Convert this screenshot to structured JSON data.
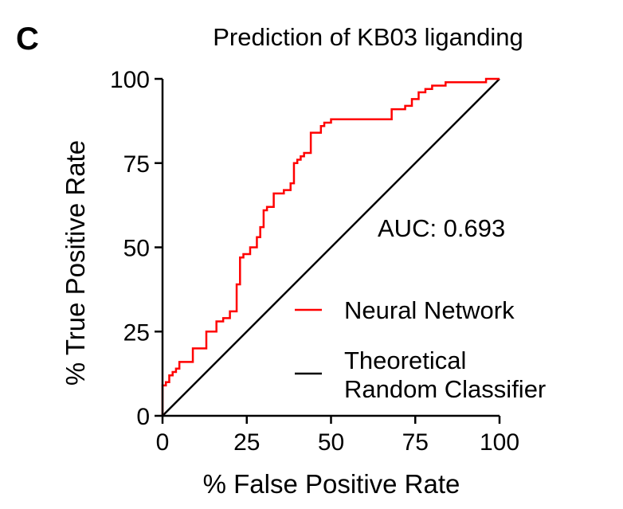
{
  "panel_label": "C",
  "chart_data": {
    "type": "line",
    "title": "Prediction of KB03 liganding",
    "xlabel": "% False Positive Rate",
    "ylabel": "% True Positive Rate",
    "xlim": [
      0,
      100
    ],
    "ylim": [
      0,
      100
    ],
    "xticks": [
      "0",
      "25",
      "50",
      "75",
      "100"
    ],
    "yticks": [
      "0",
      "25",
      "50",
      "75",
      "100"
    ],
    "grid": false,
    "legend_position": "bottom-right",
    "annotation": "AUC: 0.693",
    "series": [
      {
        "name": "Neural Network",
        "color": "#ff0000",
        "step": true,
        "x": [
          0,
          0,
          1,
          1,
          2,
          2,
          3,
          3,
          4,
          4,
          5,
          5,
          9,
          9,
          13,
          13,
          16,
          16,
          18,
          18,
          20,
          20,
          22,
          22,
          23,
          23,
          24,
          24,
          26,
          26,
          28,
          28,
          29,
          29,
          30,
          30,
          31,
          31,
          33,
          33,
          36,
          36,
          38,
          38,
          39,
          39,
          40,
          40,
          41,
          41,
          42,
          42,
          44,
          44,
          47,
          47,
          48,
          48,
          50,
          50,
          68,
          68,
          72,
          72,
          74,
          74,
          76,
          76,
          78,
          78,
          80,
          80,
          84,
          84,
          96,
          96,
          100
        ],
        "y": [
          0,
          9,
          9,
          10,
          10,
          12,
          12,
          13,
          13,
          14,
          14,
          16,
          16,
          20,
          20,
          25,
          25,
          28,
          28,
          29,
          29,
          31,
          31,
          39,
          39,
          47,
          47,
          48,
          48,
          50,
          50,
          53,
          53,
          56,
          56,
          61,
          61,
          62,
          62,
          66,
          66,
          67,
          67,
          69,
          69,
          75,
          75,
          76,
          76,
          77,
          77,
          78,
          78,
          84,
          84,
          86,
          86,
          87,
          87,
          88,
          88,
          91,
          91,
          92,
          92,
          94,
          94,
          96,
          96,
          97,
          97,
          98,
          98,
          99,
          99,
          100,
          100
        ]
      },
      {
        "name": "Theoretical Random Classifier",
        "name_lines": [
          "Theoretical",
          "Random Classifier"
        ],
        "color": "#000000",
        "x": [
          0,
          100
        ],
        "y": [
          0,
          100
        ]
      }
    ]
  }
}
